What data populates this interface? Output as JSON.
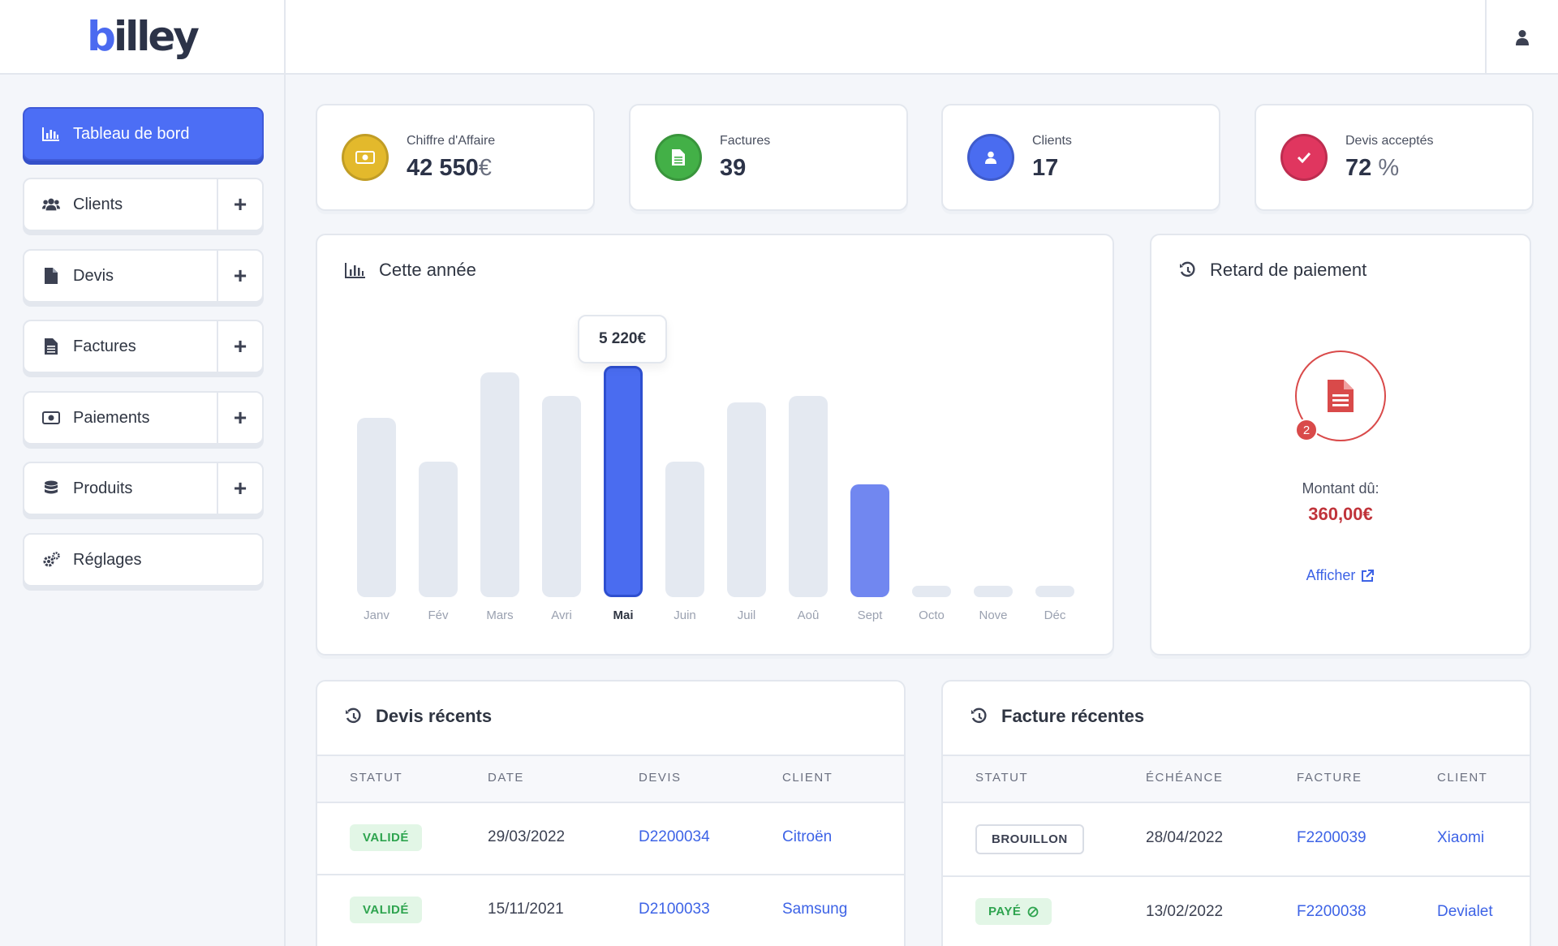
{
  "brand": {
    "logo_b": "b",
    "logo_rest": "illey"
  },
  "sidebar": {
    "items": [
      {
        "label": "Tableau de bord",
        "icon": "chart-icon",
        "active": true
      },
      {
        "label": "Clients",
        "icon": "users-icon",
        "plus": "+"
      },
      {
        "label": "Devis",
        "icon": "file-icon",
        "plus": "+"
      },
      {
        "label": "Factures",
        "icon": "invoice-icon",
        "plus": "+"
      },
      {
        "label": "Paiements",
        "icon": "money-icon",
        "plus": "+"
      },
      {
        "label": "Produits",
        "icon": "database-icon",
        "plus": "+"
      },
      {
        "label": "Réglages",
        "icon": "gears-icon"
      }
    ]
  },
  "stats": [
    {
      "label": "Chiffre d'Affaire",
      "value": "42 550",
      "unit": "€",
      "color": "#e3b92c"
    },
    {
      "label": "Factures",
      "value": "39",
      "unit": "",
      "color": "#43b047"
    },
    {
      "label": "Clients",
      "value": "17",
      "unit": "",
      "color": "#4a6cf0"
    },
    {
      "label": "Devis acceptés",
      "value": "72",
      "unit": "%",
      "color": "#e0365f"
    }
  ],
  "chart": {
    "title": "Cette année",
    "tooltip": "5 220€"
  },
  "chart_data": {
    "type": "bar",
    "categories": [
      "Janv",
      "Fév",
      "Mars",
      "Avri",
      "Mai",
      "Juin",
      "Juil",
      "Aoû",
      "Sept",
      "Octo",
      "Nove",
      "Déc"
    ],
    "values": [
      4050,
      3050,
      5070,
      4550,
      5220,
      3050,
      4400,
      4550,
      2550,
      0,
      0,
      0
    ],
    "highlighted": "Mai"
  },
  "late": {
    "title": "Retard de paiement",
    "count": "2",
    "amount_label": "Montant dû:",
    "amount": "360,00€",
    "link": "Afficher"
  },
  "quotes": {
    "title": "Devis récents",
    "headers": [
      "STATUT",
      "DATE",
      "DEVIS",
      "CLIENT"
    ],
    "rows": [
      {
        "status": "VALIDÉ",
        "date": "29/03/2022",
        "id": "D2200034",
        "client": "Citroën"
      },
      {
        "status": "VALIDÉ",
        "date": "15/11/2021",
        "id": "D2100033",
        "client": "Samsung"
      }
    ]
  },
  "invoices": {
    "title": "Facture récentes",
    "headers": [
      "STATUT",
      "ÉCHÉANCE",
      "FACTURE",
      "CLIENT"
    ],
    "rows": [
      {
        "status": "BROUILLON",
        "date": "28/04/2022",
        "id": "F2200039",
        "client": "Xiaomi"
      },
      {
        "status": "PAYÉ",
        "date": "13/02/2022",
        "id": "F2200038",
        "client": "Devialet"
      }
    ]
  }
}
